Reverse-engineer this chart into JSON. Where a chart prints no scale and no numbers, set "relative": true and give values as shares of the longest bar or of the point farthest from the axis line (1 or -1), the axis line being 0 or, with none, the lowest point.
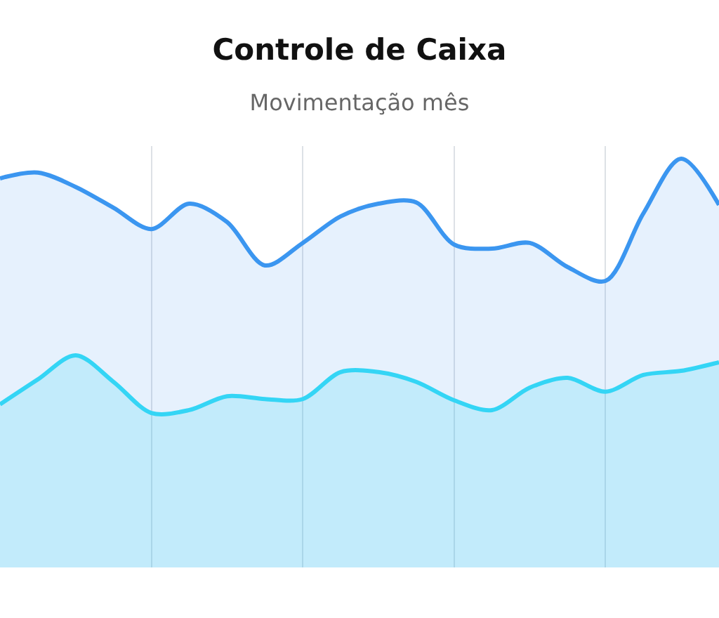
{
  "chart_data": {
    "type": "area",
    "title": "Controle de Caixa",
    "subtitle": "Movimentação mês",
    "categories": [
      null,
      null,
      null,
      null,
      null,
      null,
      null,
      null,
      null,
      null,
      null,
      null,
      null,
      null,
      null,
      null,
      null,
      null,
      null,
      null
    ],
    "relative": true,
    "series": [
      {
        "color": "#3b96f0",
        "values": [
          0.952,
          0.966,
          0.931,
          0.88,
          0.828,
          0.89,
          0.845,
          0.739,
          0.794,
          0.859,
          0.89,
          0.893,
          0.79,
          0.78,
          0.794,
          0.735,
          0.701,
          0.866,
          1.0,
          0.887
        ]
      },
      {
        "color": "#34d5f5",
        "values": [
          0.399,
          0.46,
          0.519,
          0.454,
          0.378,
          0.385,
          0.419,
          0.412,
          0.412,
          0.478,
          0.478,
          0.454,
          0.409,
          0.385,
          0.44,
          0.464,
          0.43,
          0.471,
          0.481,
          0.502
        ]
      }
    ],
    "grid": "x",
    "marker": "none",
    "line_style": "solid"
  }
}
